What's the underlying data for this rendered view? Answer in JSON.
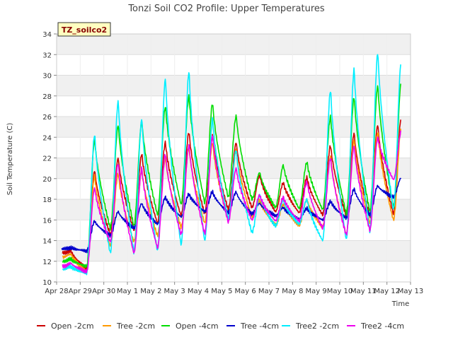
{
  "chart_data": {
    "type": "line",
    "title": "Tonzi Soil CO2 Profile: Upper Temperatures",
    "xlabel": "Time",
    "ylabel": "Soil Temperature (C)",
    "station_label": "TZ_soilco2",
    "ylim": [
      10,
      34
    ],
    "xlim": [
      0,
      15
    ],
    "yticks": [
      10,
      12,
      14,
      16,
      18,
      20,
      22,
      24,
      26,
      28,
      30,
      32,
      34
    ],
    "xtick_labels": [
      "Apr 28",
      "Apr 29",
      "Apr 30",
      "May 1",
      "May 2",
      "May 3",
      "May 4",
      "May 5",
      "May 6",
      "May 7",
      "May 8",
      "May 9",
      "May 10",
      "May 11",
      "May 12",
      "May 13"
    ],
    "grid": true,
    "legend_position": "bottom",
    "daily_extremes": {
      "days": [
        "Apr 28",
        "Apr 29",
        "Apr 30",
        "May 1",
        "May 2",
        "May 3",
        "May 4",
        "May 5",
        "May 6",
        "May 7",
        "May 8",
        "May 9",
        "May 10",
        "May 11",
        "May 12"
      ],
      "series": [
        {
          "name": "Open -2cm",
          "color": "#cc0000",
          "min": [
            12.8,
            11.3,
            14.6,
            15.0,
            15.7,
            16.4,
            16.6,
            17.0,
            17.2,
            16.8,
            16.7,
            16.5,
            16.4,
            16.3,
            16.6
          ],
          "max": [
            13.0,
            20.8,
            22.0,
            22.4,
            23.5,
            24.5,
            24.2,
            23.5,
            20.3,
            19.6,
            20.1,
            23.2,
            24.4,
            25.2,
            26.0
          ]
        },
        {
          "name": "Tree -2cm",
          "color": "#ff9900",
          "min": [
            12.4,
            11.0,
            13.5,
            13.9,
            14.5,
            15.3,
            15.7,
            16.0,
            16.3,
            15.5,
            15.5,
            15.3,
            14.6,
            15.7,
            16.0
          ],
          "max": [
            12.7,
            20.3,
            20.5,
            20.8,
            22.0,
            23.0,
            23.5,
            22.8,
            17.9,
            17.5,
            18.0,
            22.2,
            23.8,
            24.5,
            25.0
          ]
        },
        {
          "name": "Open -4cm",
          "color": "#00dd00",
          "min": [
            12.0,
            11.5,
            15.2,
            15.4,
            16.5,
            17.5,
            17.7,
            18.2,
            18.0,
            17.2,
            17.1,
            17.0,
            16.6,
            16.8,
            17.2
          ],
          "max": [
            12.2,
            23.8,
            25.2,
            25.6,
            27.0,
            28.0,
            27.3,
            26.1,
            20.6,
            21.3,
            21.6,
            26.0,
            27.9,
            29.0,
            29.5
          ]
        },
        {
          "name": "Tree -4cm",
          "color": "#0000cc",
          "min": [
            13.2,
            13.0,
            14.5,
            15.2,
            15.6,
            16.3,
            16.8,
            16.7,
            16.6,
            16.4,
            16.1,
            16.0,
            16.2,
            16.5,
            18.2
          ],
          "max": [
            13.3,
            15.9,
            16.8,
            17.6,
            18.2,
            18.5,
            18.7,
            18.7,
            17.6,
            17.2,
            17.1,
            17.8,
            19.0,
            19.3,
            20.1
          ]
        },
        {
          "name": "Tree2 -2cm",
          "color": "#00eeff",
          "min": [
            11.2,
            10.8,
            12.8,
            12.9,
            13.0,
            13.6,
            14.0,
            16.1,
            14.8,
            15.4,
            15.6,
            14.0,
            14.1,
            14.9,
            17.0
          ],
          "max": [
            11.5,
            24.3,
            27.5,
            25.8,
            29.7,
            30.4,
            25.8,
            22.8,
            18.4,
            17.9,
            18.0,
            28.6,
            30.6,
            32.2,
            31.5
          ]
        },
        {
          "name": "Tree2 -4cm",
          "color": "#ee00ee",
          "min": [
            11.5,
            11.0,
            13.9,
            12.8,
            13.3,
            14.6,
            14.7,
            15.8,
            16.0,
            15.9,
            15.9,
            15.2,
            14.6,
            15.0,
            19.9
          ],
          "max": [
            11.8,
            19.1,
            21.5,
            21.0,
            22.4,
            23.3,
            24.2,
            21.0,
            18.4,
            18.2,
            19.7,
            22.0,
            23.2,
            24.0,
            24.6
          ]
        }
      ]
    }
  },
  "legend": {
    "items": [
      {
        "label": "Open -2cm",
        "color": "#cc0000"
      },
      {
        "label": "Tree -2cm",
        "color": "#ff9900"
      },
      {
        "label": "Open -4cm",
        "color": "#00dd00"
      },
      {
        "label": "Tree -4cm",
        "color": "#0000cc"
      },
      {
        "label": "Tree2 -2cm",
        "color": "#00eeff"
      },
      {
        "label": "Tree2 -4cm",
        "color": "#ee00ee"
      }
    ]
  }
}
